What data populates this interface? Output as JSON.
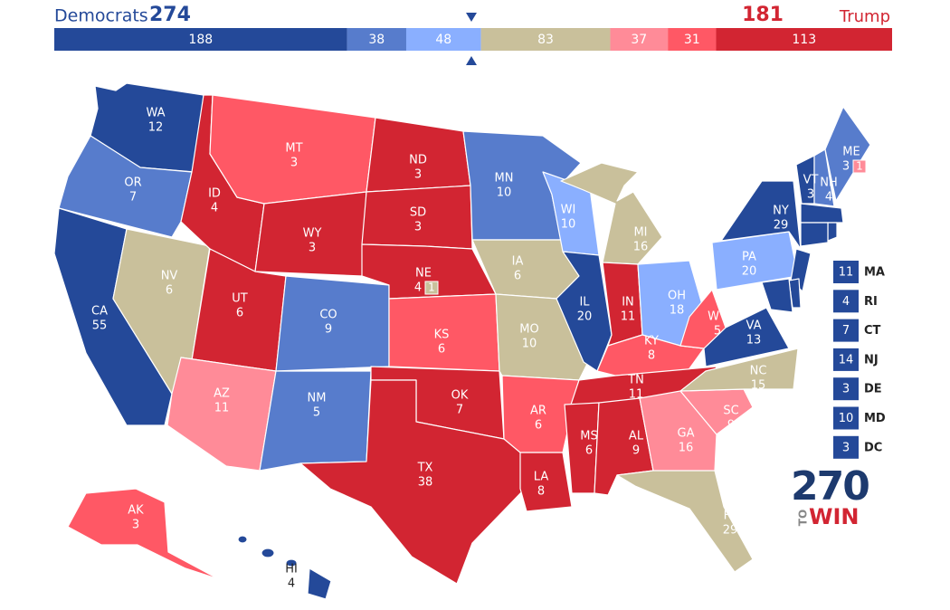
{
  "header": {
    "dem_label": "Democrats",
    "dem_total": 274,
    "rep_total": 181,
    "rep_label": "Trump"
  },
  "bar": [
    {
      "value": 188,
      "color": "#244999"
    },
    {
      "value": 38,
      "color": "#577ccc"
    },
    {
      "value": 48,
      "color": "#8aafff"
    },
    {
      "value": 83,
      "color": "#c9c09b"
    },
    {
      "value": 37,
      "color": "#ff8b98"
    },
    {
      "value": 31,
      "color": "#ff5865"
    },
    {
      "value": 113,
      "color": "#d22532"
    }
  ],
  "states": [
    {
      "abbr": "WA",
      "votes": 12,
      "color": "#244999"
    },
    {
      "abbr": "OR",
      "votes": 7,
      "color": "#577ccc"
    },
    {
      "abbr": "CA",
      "votes": 55,
      "color": "#244999"
    },
    {
      "abbr": "NV",
      "votes": 6,
      "color": "#c9c09b"
    },
    {
      "abbr": "ID",
      "votes": 4,
      "color": "#d22532"
    },
    {
      "abbr": "MT",
      "votes": 3,
      "color": "#ff5865"
    },
    {
      "abbr": "WY",
      "votes": 3,
      "color": "#d22532"
    },
    {
      "abbr": "UT",
      "votes": 6,
      "color": "#d22532"
    },
    {
      "abbr": "AZ",
      "votes": 11,
      "color": "#ff8b98"
    },
    {
      "abbr": "CO",
      "votes": 9,
      "color": "#577ccc"
    },
    {
      "abbr": "NM",
      "votes": 5,
      "color": "#577ccc"
    },
    {
      "abbr": "ND",
      "votes": 3,
      "color": "#d22532"
    },
    {
      "abbr": "SD",
      "votes": 3,
      "color": "#d22532"
    },
    {
      "abbr": "NE",
      "votes": 4,
      "color": "#d22532",
      "district": {
        "votes": 1,
        "color": "#c9c09b"
      }
    },
    {
      "abbr": "KS",
      "votes": 6,
      "color": "#ff5865"
    },
    {
      "abbr": "OK",
      "votes": 7,
      "color": "#d22532"
    },
    {
      "abbr": "TX",
      "votes": 38,
      "color": "#d22532"
    },
    {
      "abbr": "MN",
      "votes": 10,
      "color": "#577ccc"
    },
    {
      "abbr": "IA",
      "votes": 6,
      "color": "#c9c09b"
    },
    {
      "abbr": "MO",
      "votes": 10,
      "color": "#c9c09b"
    },
    {
      "abbr": "AR",
      "votes": 6,
      "color": "#ff5865"
    },
    {
      "abbr": "LA",
      "votes": 8,
      "color": "#d22532"
    },
    {
      "abbr": "WI",
      "votes": 10,
      "color": "#8aafff"
    },
    {
      "abbr": "IL",
      "votes": 20,
      "color": "#244999"
    },
    {
      "abbr": "MI",
      "votes": 16,
      "color": "#c9c09b"
    },
    {
      "abbr": "IN",
      "votes": 11,
      "color": "#d22532"
    },
    {
      "abbr": "OH",
      "votes": 18,
      "color": "#8aafff"
    },
    {
      "abbr": "KY",
      "votes": 8,
      "color": "#ff5865"
    },
    {
      "abbr": "TN",
      "votes": 11,
      "color": "#d22532"
    },
    {
      "abbr": "MS",
      "votes": 6,
      "color": "#d22532"
    },
    {
      "abbr": "AL",
      "votes": 9,
      "color": "#d22532"
    },
    {
      "abbr": "GA",
      "votes": 16,
      "color": "#ff8b98"
    },
    {
      "abbr": "FL",
      "votes": 29,
      "color": "#c9c09b"
    },
    {
      "abbr": "SC",
      "votes": 9,
      "color": "#ff8b98"
    },
    {
      "abbr": "NC",
      "votes": 15,
      "color": "#c9c09b"
    },
    {
      "abbr": "VA",
      "votes": 13,
      "color": "#244999"
    },
    {
      "abbr": "WV",
      "votes": 5,
      "color": "#ff5865"
    },
    {
      "abbr": "PA",
      "votes": 20,
      "color": "#8aafff"
    },
    {
      "abbr": "NY",
      "votes": 29,
      "color": "#244999"
    },
    {
      "abbr": "VT",
      "votes": 3,
      "color": "#244999"
    },
    {
      "abbr": "NH",
      "votes": 4,
      "color": "#577ccc"
    },
    {
      "abbr": "ME",
      "votes": 3,
      "color": "#577ccc",
      "district": {
        "votes": 1,
        "color": "#ff8b98"
      }
    },
    {
      "abbr": "AK",
      "votes": 3,
      "color": "#ff5865"
    },
    {
      "abbr": "HI",
      "votes": 4,
      "color": "#244999"
    }
  ],
  "callouts": [
    {
      "abbr": "MA",
      "votes": 11,
      "color": "#244999"
    },
    {
      "abbr": "RI",
      "votes": 4,
      "color": "#244999"
    },
    {
      "abbr": "CT",
      "votes": 7,
      "color": "#244999"
    },
    {
      "abbr": "NJ",
      "votes": 14,
      "color": "#244999"
    },
    {
      "abbr": "DE",
      "votes": 3,
      "color": "#244999"
    },
    {
      "abbr": "MD",
      "votes": 10,
      "color": "#244999"
    },
    {
      "abbr": "DC",
      "votes": 3,
      "color": "#244999"
    }
  ],
  "logo": {
    "number": "270",
    "to": "TO",
    "win": "WIN"
  }
}
